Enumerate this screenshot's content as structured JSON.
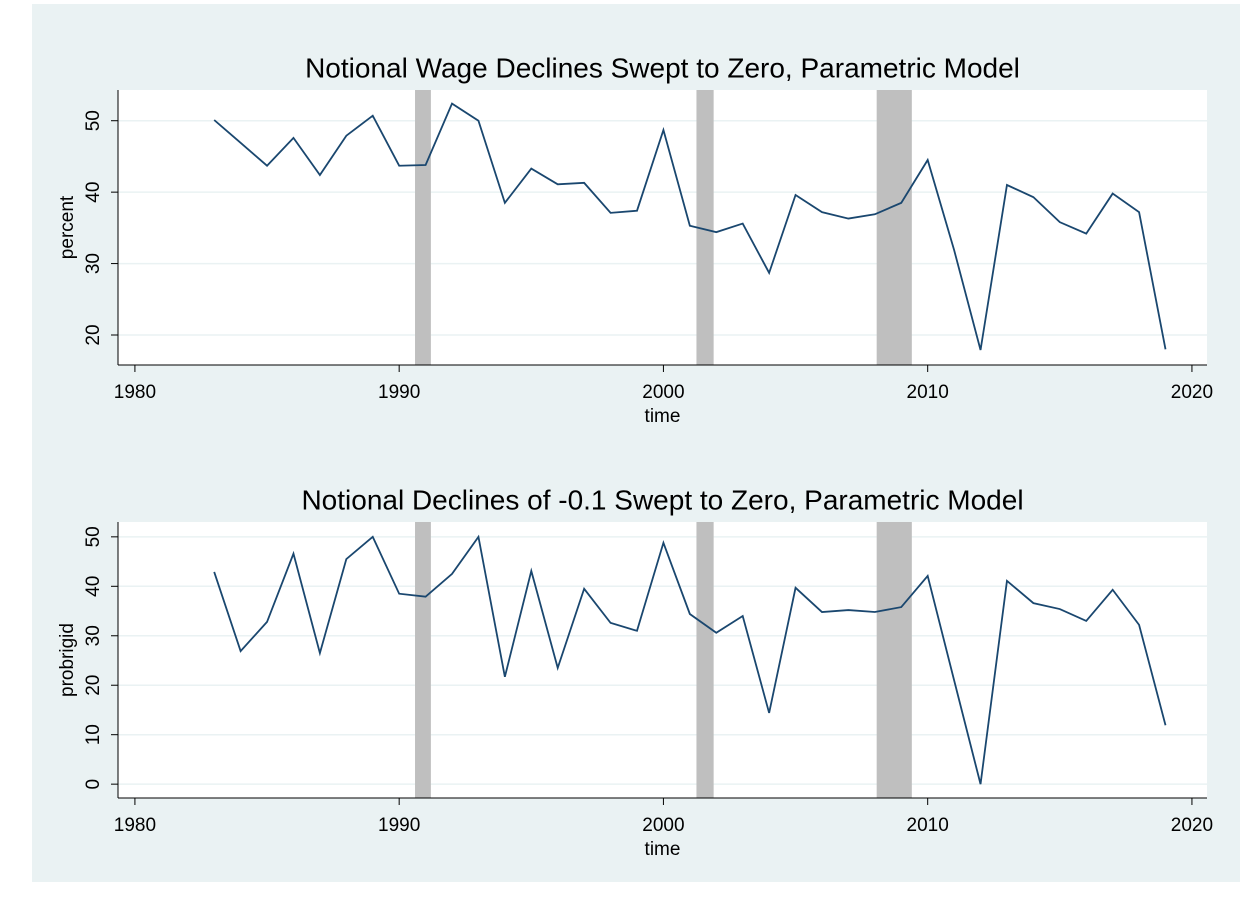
{
  "chart_data": [
    {
      "type": "line",
      "title": "Notional Wage Declines Swept to Zero, Parametric Model",
      "x_label": "time",
      "y_label": "percent",
      "x": [
        1983,
        1984,
        1985,
        1986,
        1987,
        1988,
        1989,
        1990,
        1991,
        1992,
        1993,
        1994,
        1995,
        1996,
        1997,
        1998,
        1999,
        2000,
        2001,
        2002,
        2003,
        2004,
        2005,
        2006,
        2007,
        2008,
        2009,
        2010,
        2011,
        2012,
        2013,
        2014,
        2015,
        2016,
        2017,
        2018,
        2019
      ],
      "values": [
        50.1,
        46.9,
        43.7,
        47.6,
        42.4,
        47.9,
        50.7,
        43.7,
        43.8,
        52.4,
        50.0,
        38.5,
        43.3,
        41.1,
        41.3,
        37.1,
        37.4,
        48.7,
        35.3,
        34.4,
        35.6,
        28.7,
        39.6,
        37.2,
        36.3,
        36.9,
        38.5,
        44.5,
        31.9,
        17.9,
        41.0,
        39.3,
        35.8,
        34.2,
        39.8,
        37.2,
        18.0
      ],
      "color": "#1a476f",
      "xlim": [
        1979.36,
        2020.57
      ],
      "xticks": [
        1980,
        1990,
        2000,
        2010,
        2020
      ],
      "ylim": [
        15.8,
        54.3
      ],
      "yticks": [
        20,
        30,
        40,
        50
      ],
      "grid": true,
      "shaded_regions": [
        [
          1990.6,
          1991.2
        ],
        [
          2001.25,
          2001.9
        ],
        [
          2008.07,
          2009.4
        ]
      ],
      "shade_color": "#bfbfbf"
    },
    {
      "type": "line",
      "title": "Notional Declines of -0.1 Swept to Zero, Parametric Model",
      "x_label": "time",
      "y_label": "probrigid",
      "x": [
        1983,
        1984,
        1985,
        1986,
        1987,
        1988,
        1989,
        1990,
        1991,
        1992,
        1993,
        1994,
        1995,
        1996,
        1997,
        1998,
        1999,
        2000,
        2001,
        2002,
        2003,
        2004,
        2005,
        2006,
        2007,
        2008,
        2009,
        2010,
        2011,
        2012,
        2013,
        2014,
        2015,
        2016,
        2017,
        2018,
        2019
      ],
      "values": [
        42.9,
        26.9,
        32.8,
        46.6,
        26.5,
        45.5,
        50.0,
        38.5,
        37.9,
        42.5,
        50.0,
        21.7,
        43.1,
        23.5,
        39.5,
        32.6,
        31.0,
        48.8,
        34.4,
        30.6,
        34.0,
        14.4,
        39.7,
        34.8,
        35.2,
        34.8,
        35.8,
        42.1,
        21.0,
        0,
        41.1,
        36.6,
        35.4,
        33.0,
        39.3,
        32.2,
        11.9
      ],
      "color": "#1a476f",
      "xlim": [
        1979.36,
        2020.57
      ],
      "xticks": [
        1980,
        1990,
        2000,
        2010,
        2020
      ],
      "ylim": [
        -2.8,
        53.0
      ],
      "yticks": [
        0,
        10,
        20,
        30,
        40,
        50
      ],
      "grid": true,
      "shaded_regions": [
        [
          1990.6,
          1991.2
        ],
        [
          2001.25,
          2001.9
        ],
        [
          2008.07,
          2009.4
        ]
      ],
      "shade_color": "#bfbfbf"
    }
  ]
}
